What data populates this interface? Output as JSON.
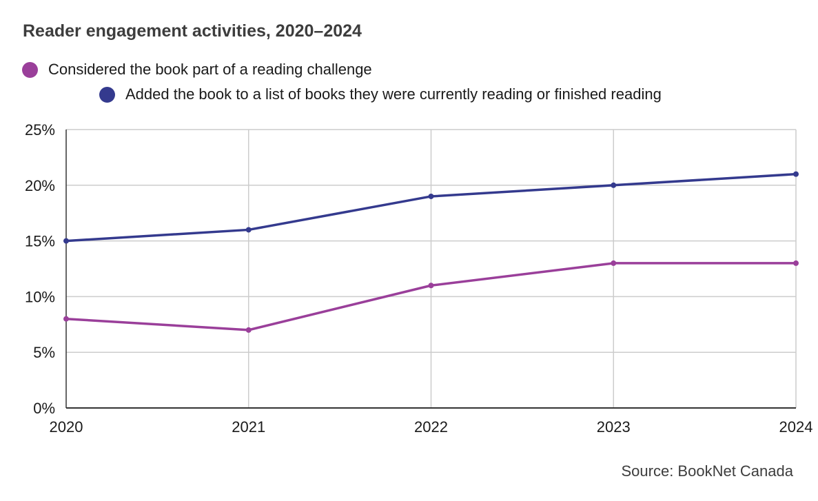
{
  "title": "Reader engagement activities, 2020–2024",
  "source": "Source: BookNet Canada",
  "colors": {
    "challenge": "#9a3f9a",
    "list": "#343a8e",
    "grid": "#cccccc",
    "axis": "#333333"
  },
  "chart_data": {
    "type": "line",
    "title": "Reader engagement activities, 2020–2024",
    "x": [
      "2020",
      "2021",
      "2022",
      "2023",
      "2024"
    ],
    "y_ticks": [
      "0%",
      "5%",
      "10%",
      "15%",
      "20%",
      "25%"
    ],
    "ylim": [
      0,
      25
    ],
    "grid": true,
    "legend_position": "top-left",
    "series": [
      {
        "name": "Considered the book part of a reading challenge",
        "values": [
          8,
          7,
          11,
          13,
          13
        ],
        "color": "#9a3f9a"
      },
      {
        "name": "Added the book to a list of books they were currently reading or finished reading",
        "values": [
          15,
          16,
          19,
          20,
          21
        ],
        "color": "#343a8e"
      }
    ]
  }
}
